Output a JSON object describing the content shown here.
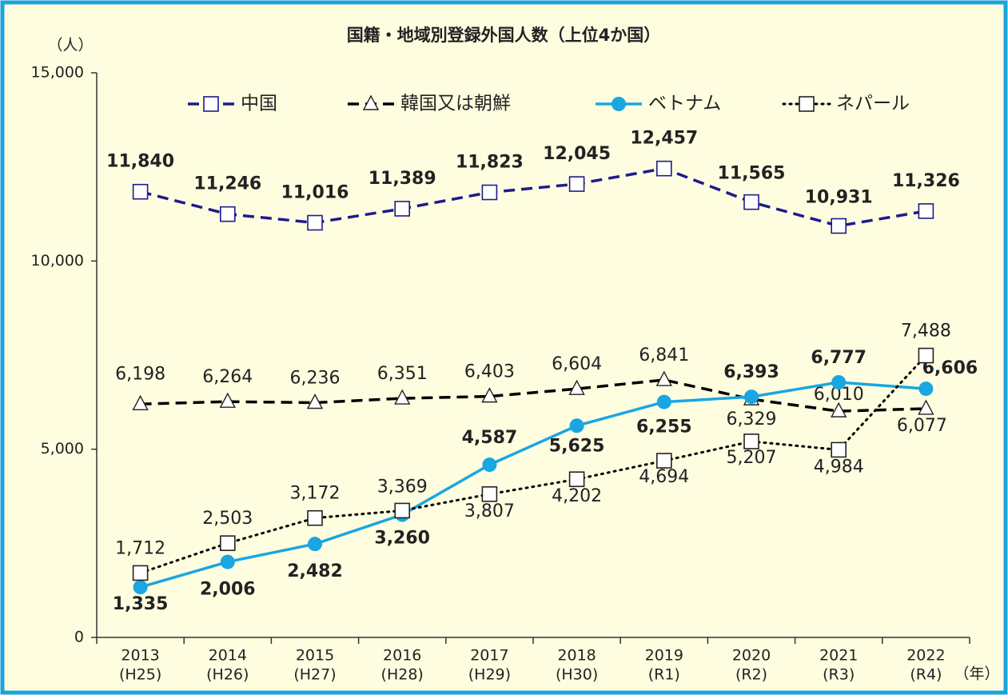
{
  "chart_data": {
    "type": "line",
    "title": "国籍・地域別登録外国人数（上位4か国）",
    "y_unit": "（人）",
    "x_unit": "（年）",
    "categories": [
      [
        "2013",
        "(H25)"
      ],
      [
        "2014",
        "(H26)"
      ],
      [
        "2015",
        "(H27)"
      ],
      [
        "2016",
        "(H28)"
      ],
      [
        "2017",
        "(H29)"
      ],
      [
        "2018",
        "(H30)"
      ],
      [
        "2019",
        "(R1)"
      ],
      [
        "2020",
        "(R2)"
      ],
      [
        "2021",
        "(R3)"
      ],
      [
        "2022",
        "(R4)"
      ]
    ],
    "ylim": [
      0,
      15000
    ],
    "yticks": [
      {
        "value": 0,
        "label": "0"
      },
      {
        "value": 5000,
        "label": "5,000"
      },
      {
        "value": 10000,
        "label": "10,000"
      },
      {
        "value": 15000,
        "label": "15,000"
      }
    ],
    "grid": false,
    "series": [
      {
        "name": "中国",
        "color": "#1c1c8a",
        "style": "dashed",
        "marker": "square",
        "values": [
          11840,
          11246,
          11016,
          11389,
          11823,
          12045,
          12457,
          11565,
          10931,
          11326
        ],
        "value_labels": [
          "11,840",
          "11,246",
          "11,016",
          "11,389",
          "11,823",
          "12,045",
          "12,457",
          "11,565",
          "10,931",
          "11,326"
        ]
      },
      {
        "name": "韓国又は朝鮮",
        "color": "#000000",
        "style": "dashed",
        "marker": "triangle",
        "values": [
          6198,
          6264,
          6236,
          6351,
          6403,
          6604,
          6841,
          6329,
          6010,
          6077
        ],
        "value_labels": [
          "6,198",
          "6,264",
          "6,236",
          "6,351",
          "6,403",
          "6,604",
          "6,841",
          "6,329",
          "6,010",
          "6,077"
        ]
      },
      {
        "name": "ベトナム",
        "color": "#1aa6e0",
        "style": "solid",
        "marker": "circle",
        "values": [
          1335,
          2006,
          2482,
          3260,
          4587,
          5625,
          6255,
          6393,
          6777,
          6606
        ],
        "value_labels": [
          "1,335",
          "2,006",
          "2,482",
          "3,260",
          "4,587",
          "5,625",
          "6,255",
          "6,393",
          "6,777",
          "6,606"
        ]
      },
      {
        "name": "ネパール",
        "color": "#000000",
        "style": "dotted",
        "marker": "square",
        "values": [
          1712,
          2503,
          3172,
          3369,
          3807,
          4202,
          4694,
          5207,
          4984,
          7488
        ],
        "value_labels": [
          "1,712",
          "2,503",
          "3,172",
          "3,369",
          "3,807",
          "4,202",
          "4,694",
          "5,207",
          "4,984",
          "7,488"
        ]
      }
    ]
  }
}
